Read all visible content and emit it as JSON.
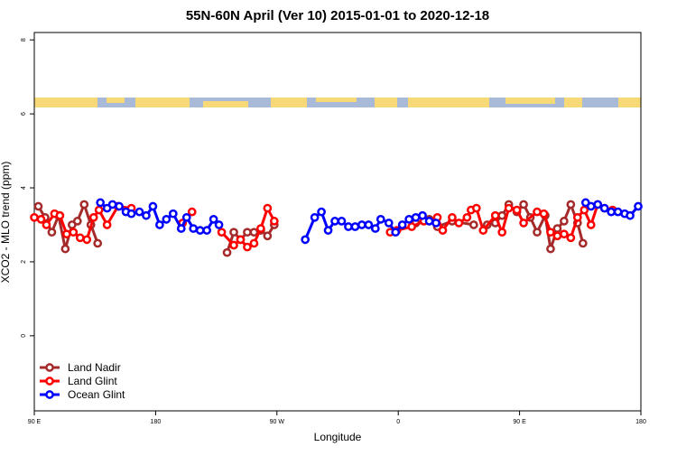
{
  "chart_data": {
    "type": "line",
    "title": "55N-60N April (Ver 10)   2015-01-01 to 2020-12-18",
    "xlabel": "Longitude",
    "ylabel": "XCO2 - MLO trend (ppm)",
    "xlim": [
      90,
      540
    ],
    "ylim": [
      -2.03,
      8.2
    ],
    "xticks": [
      {
        "value": 90,
        "label": "90 E"
      },
      180,
      {
        "value": 270,
        "label": "90 W"
      },
      {
        "value": 360,
        "label": "0"
      },
      {
        "value": 450,
        "label": "90 E"
      },
      180
    ],
    "yticks": [
      0,
      2,
      4,
      6,
      8
    ],
    "legend": "bottomleft",
    "grid": false,
    "series": [
      {
        "name": "Land Nadir",
        "color": "#A52A2A",
        "x": [
          93,
          98,
          103,
          108,
          113,
          118,
          122,
          127,
          132,
          137,
          null,
          233,
          238,
          243,
          248,
          253,
          258,
          263,
          268,
          null,
          373,
          383,
          389,
          400,
          416,
          null,
          426,
          432,
          437,
          442,
          448,
          453,
          458,
          463,
          469,
          473,
          478,
          483,
          488,
          493,
          497
        ],
        "values": [
          3.5,
          3.2,
          2.8,
          3.25,
          2.35,
          3.0,
          3.1,
          3.55,
          3.0,
          2.5,
          null,
          2.25,
          2.8,
          2.6,
          2.8,
          2.8,
          2.85,
          2.7,
          3.0,
          null,
          3.05,
          3.15,
          2.95,
          3.1,
          3.0,
          null,
          3.0,
          3.05,
          3.25,
          3.55,
          3.35,
          3.55,
          3.2,
          2.8,
          3.25,
          2.35,
          2.9,
          3.1,
          3.55,
          3.05,
          2.5
        ]
      },
      {
        "name": "Land Glint",
        "color": "#FF0000",
        "x": [
          90,
          95,
          99,
          105,
          109,
          114,
          119,
          124,
          129,
          134,
          138,
          144,
          152,
          162,
          null,
          200,
          207,
          null,
          229,
          238,
          243,
          248,
          253,
          258,
          263,
          268,
          null,
          354,
          359,
          370,
          379,
          389,
          393,
          400,
          405,
          411,
          414,
          418,
          423,
          432,
          437,
          442,
          448,
          453,
          463,
          468,
          473,
          478,
          483,
          488,
          493,
          498,
          503,
          508,
          513,
          519
        ],
        "values": [
          3.2,
          3.15,
          3.0,
          3.3,
          3.25,
          2.75,
          2.8,
          2.65,
          2.6,
          3.2,
          3.4,
          3.0,
          3.5,
          3.45,
          null,
          3.05,
          3.35,
          null,
          2.8,
          2.45,
          2.6,
          2.4,
          2.5,
          2.9,
          3.45,
          3.1,
          null,
          2.8,
          2.85,
          2.95,
          3.1,
          3.2,
          2.85,
          3.2,
          3.05,
          3.2,
          3.4,
          3.45,
          2.85,
          3.25,
          2.8,
          3.45,
          3.4,
          3.05,
          3.35,
          3.3,
          2.8,
          2.7,
          2.75,
          2.65,
          3.2,
          3.4,
          3.0,
          3.55,
          3.45,
          3.4
        ]
      },
      {
        "name": "Ocean Glint",
        "color": "#0000FF",
        "x": [
          139,
          144,
          148,
          153,
          158,
          162,
          168,
          173,
          178,
          183,
          188,
          193,
          199,
          203,
          208,
          213,
          218,
          223,
          227,
          null,
          291,
          298,
          303,
          308,
          313,
          318,
          323,
          328,
          333,
          338,
          343,
          347,
          353,
          358,
          363,
          368,
          373,
          378,
          383,
          388,
          null,
          499,
          503,
          508,
          513,
          518,
          523,
          528,
          532,
          538
        ],
        "values": [
          3.6,
          3.45,
          3.55,
          3.5,
          3.35,
          3.3,
          3.35,
          3.25,
          3.5,
          3.0,
          3.15,
          3.3,
          2.9,
          3.2,
          2.9,
          2.85,
          2.85,
          3.15,
          3.0,
          null,
          2.6,
          3.2,
          3.35,
          2.85,
          3.1,
          3.1,
          2.95,
          2.95,
          3.0,
          3.0,
          2.9,
          3.15,
          3.05,
          2.8,
          3.0,
          3.15,
          3.2,
          3.25,
          3.1,
          3.05,
          null,
          3.6,
          3.5,
          3.55,
          3.45,
          3.35,
          3.35,
          3.3,
          3.25,
          3.5
        ]
      }
    ]
  }
}
